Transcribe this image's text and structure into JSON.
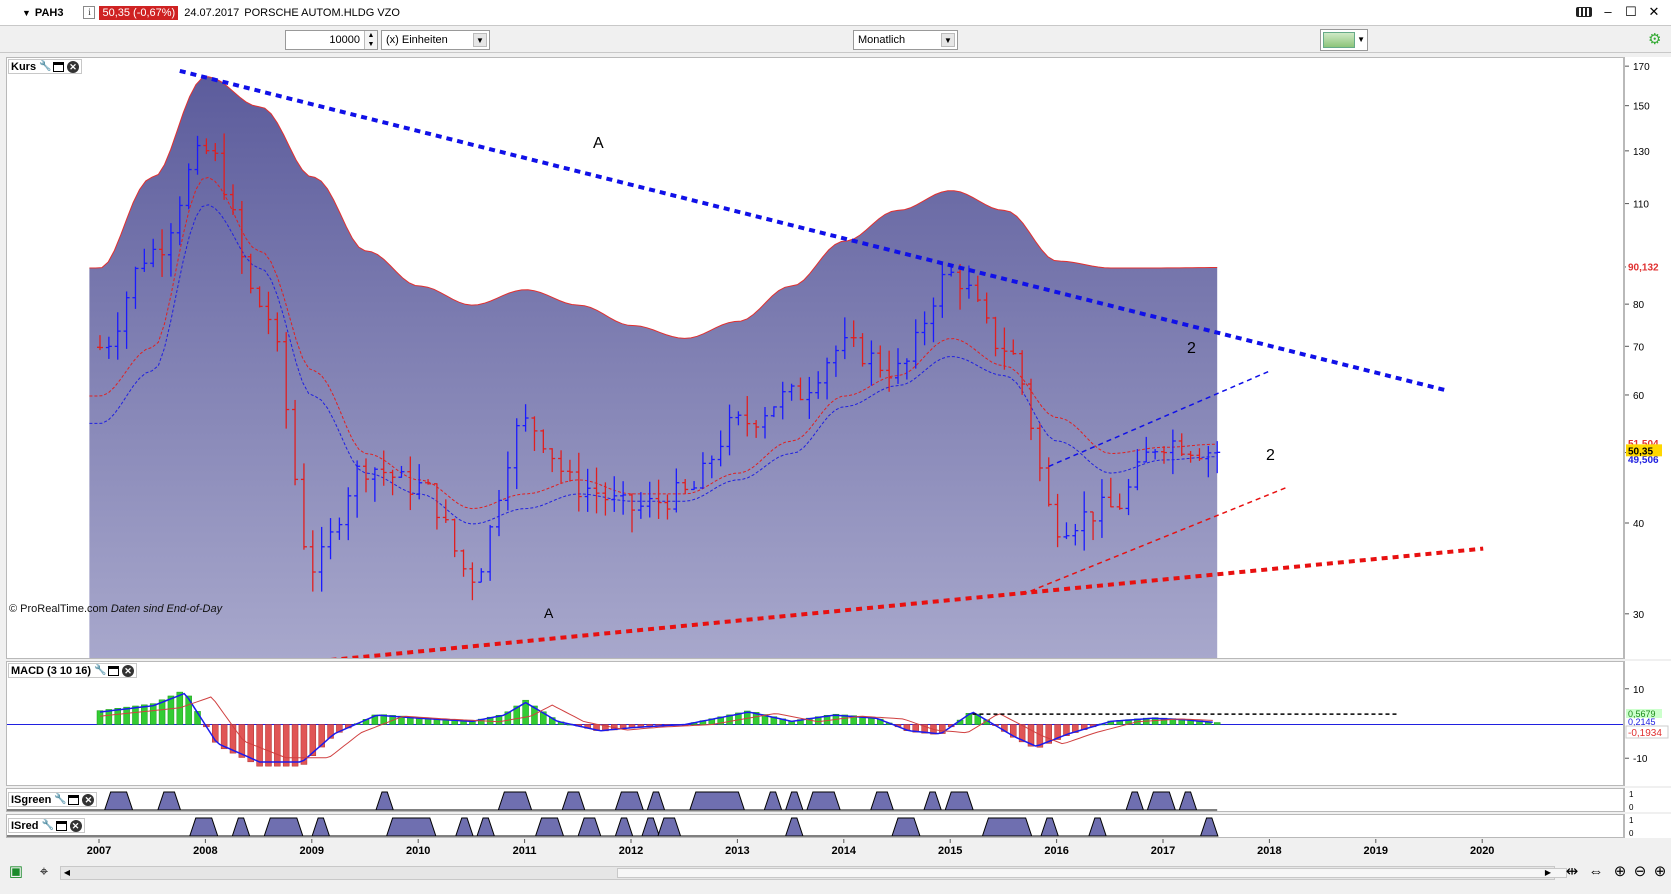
{
  "titlebar": {
    "symbol": "PAH3",
    "price_badge": "50,35 (-0,67%)",
    "date": "24.07.2017",
    "name": "PORSCHE AUTOM.HLDG VZO",
    "info_glyph": "i",
    "icons": [
      "keyboard-icon",
      "minimize-icon",
      "maximize-icon",
      "close-icon"
    ]
  },
  "toolbar": {
    "quantity": "10000",
    "units": "(x) Einheiten",
    "period": "Monatlich",
    "icons": [
      "chart-settings-icon",
      "gear-icon"
    ]
  },
  "panels": {
    "kurs": {
      "label": "Kurs",
      "watermark": "© ProRealTime.com",
      "watermark_note": "Daten sind End-of-Day",
      "y_ticks": [
        "170",
        "150",
        "130",
        "110",
        "90",
        "80",
        "70",
        "60",
        "50",
        "40",
        "30"
      ],
      "price_labels": {
        "upper": "90,132",
        "red": "51,504",
        "current": "50,35",
        "blue": "49,506"
      },
      "annotations": {
        "a_top": "A",
        "a_bottom": "A",
        "two_upper": "2",
        "two_lower": "2"
      }
    },
    "macd": {
      "label": "MACD (3 10 16)",
      "y_ticks": [
        "10",
        "-10"
      ],
      "value_labels": {
        "green": "0,5679",
        "blue": "0,2145",
        "red": "-0,1934"
      }
    },
    "isgreen": {
      "label": "ISgreen",
      "y_ticks": [
        "1",
        "0"
      ]
    },
    "isred": {
      "label": "ISred",
      "y_ticks": [
        "1",
        "0"
      ]
    }
  },
  "x_axis": {
    "years": [
      "2007",
      "2008",
      "2009",
      "2010",
      "2011",
      "2012",
      "2013",
      "2014",
      "2015",
      "2016",
      "2017",
      "2018",
      "2019",
      "2020"
    ]
  },
  "colors": {
    "up_bar": "#1a1aff",
    "down_bar": "#e01f1f",
    "band_fill": "#6b6ba8",
    "macd_green": "#33cc33",
    "macd_red": "#e05555",
    "price_badge_bg": "#cf2222",
    "current_price_bg": "#ffd700"
  },
  "chart_data": {
    "type": "candlestick",
    "title": "PAH3 PORSCHE AUTOM.HLDG VZO",
    "period": "monthly",
    "y_scale": "log",
    "ylim": [
      26,
      175
    ],
    "x": [
      "2007-01",
      "2007-07",
      "2008-01",
      "2008-07",
      "2009-01",
      "2009-07",
      "2010-01",
      "2010-07",
      "2011-01",
      "2011-07",
      "2012-01",
      "2012-07",
      "2013-01",
      "2013-07",
      "2014-01",
      "2014-07",
      "2015-01",
      "2015-07",
      "2016-01",
      "2016-07",
      "2017-01",
      "2017-07"
    ],
    "close": [
      70,
      95,
      130,
      80,
      35,
      48,
      45,
      34,
      55,
      45,
      42,
      44,
      55,
      60,
      70,
      65,
      88,
      70,
      40,
      42,
      52,
      50.35
    ],
    "series": [
      {
        "name": "upper band",
        "values": [
          90,
          120,
          165,
          150,
          120,
          95,
          85,
          80,
          84,
          80,
          75,
          72,
          76,
          85,
          98,
          108,
          115,
          108,
          92,
          90,
          90,
          90.132
        ]
      },
      {
        "name": "moving average red",
        "values": [
          60,
          70,
          120,
          95,
          65,
          50,
          46,
          42,
          44,
          46,
          44,
          44,
          47,
          52,
          60,
          64,
          72,
          66,
          56,
          50,
          51,
          51.504
        ]
      },
      {
        "name": "moving average blue",
        "values": [
          55,
          65,
          110,
          90,
          60,
          47,
          44,
          40,
          42,
          44,
          43,
          43,
          46,
          50,
          58,
          62,
          68,
          64,
          52,
          47,
          49,
          49.506
        ]
      }
    ],
    "trendlines": [
      {
        "label": "A",
        "color": "blue",
        "from": [
          "2007-10",
          168
        ],
        "to": [
          "2019-09",
          61
        ]
      },
      {
        "label": "A",
        "color": "red",
        "from": [
          "2009-03",
          26
        ],
        "to": [
          "2020-01",
          37
        ]
      },
      {
        "label": "2",
        "color": "blue",
        "from": [
          "2015-12",
          48
        ],
        "to": [
          "2018-01",
          65
        ]
      },
      {
        "label": "2",
        "color": "red",
        "from": [
          "2015-09",
          32
        ],
        "to": [
          "2018-03",
          45
        ]
      }
    ],
    "macd": {
      "name": "MACD (3 10 16)",
      "ylim": [
        -18,
        18
      ],
      "last": {
        "histogram": 0.5679,
        "signal": 0.2145,
        "line": -0.1934
      }
    }
  }
}
